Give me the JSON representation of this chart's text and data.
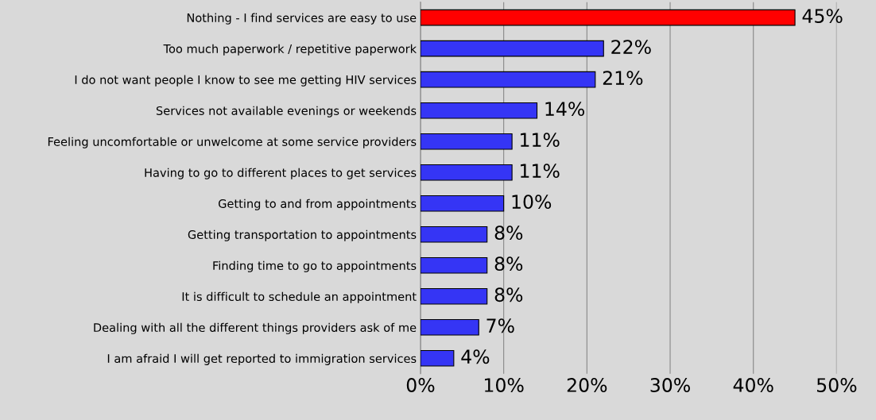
{
  "chart_data": {
    "type": "bar",
    "orientation": "horizontal",
    "categories": [
      "Nothing - I find services are easy to use",
      "Too much paperwork / repetitive paperwork",
      "I do not want people I know to see me getting HIV services",
      "Services not available evenings or weekends",
      "Feeling uncomfortable or unwelcome at some service providers",
      "Having to go to different places to get services",
      "Getting to and from appointments",
      "Getting transportation to appointments",
      "Finding time to go to appointments",
      "It is difficult to schedule an appointment",
      "Dealing with all the different things providers ask of me",
      "I am afraid I will get reported to immigration services"
    ],
    "values": [
      45,
      22,
      21,
      14,
      11,
      11,
      10,
      8,
      8,
      8,
      7,
      4
    ],
    "colors": [
      "#ff0000",
      "#3535f5",
      "#3535f5",
      "#3535f5",
      "#3535f5",
      "#3535f5",
      "#3535f5",
      "#3535f5",
      "#3535f5",
      "#3535f5",
      "#3535f5",
      "#3535f5"
    ],
    "value_labels": [
      "45%",
      "22%",
      "21%",
      "14%",
      "11%",
      "11%",
      "10%",
      "8%",
      "8%",
      "8%",
      "7%",
      "4%"
    ],
    "xlim": [
      0,
      50
    ],
    "xticks": [
      {
        "value": 0,
        "label": "0%"
      },
      {
        "value": 10,
        "label": "10%"
      },
      {
        "value": 20,
        "label": "20%"
      },
      {
        "value": 30,
        "label": "30%"
      },
      {
        "value": 40,
        "label": "40%"
      },
      {
        "value": 50,
        "label": "50%"
      }
    ],
    "grid": "x",
    "legend": false
  }
}
